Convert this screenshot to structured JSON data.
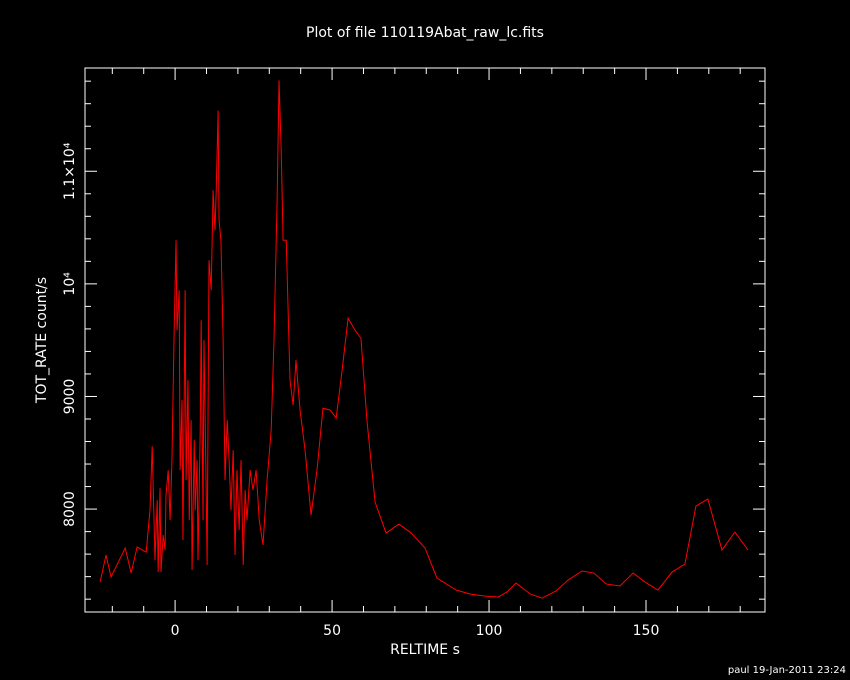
{
  "chart_data": {
    "type": "line",
    "title": "Plot of file 110119Abat_raw_lc.fits",
    "xlabel": "RELTIME  s",
    "ylabel": "TOT_RATE  count/s",
    "footer": "paul 19-Jan-2011 23:24",
    "color": "#ff0000",
    "xlim": [
      -28.7,
      187.9
    ],
    "ylim": [
      7086,
      11917
    ],
    "xticks": [
      0,
      50,
      100,
      150
    ],
    "yticks": [
      8000,
      9000,
      {
        "value": 10000,
        "label": "10⁴"
      },
      {
        "value": 11000,
        "label": "1.1×10⁴"
      }
    ],
    "xminor": [
      -20,
      -10,
      10,
      20,
      30,
      40,
      60,
      70,
      80,
      90,
      110,
      120,
      130,
      140,
      160,
      170,
      180
    ],
    "yminor": [
      7200,
      7400,
      7600,
      7800,
      8200,
      8400,
      8600,
      8800,
      9200,
      9400,
      9600,
      9800,
      10200,
      10400,
      10600,
      10800,
      11200,
      11400,
      11600,
      11800
    ],
    "x": [
      -23.9,
      -22,
      -20.4,
      -15.9,
      -14,
      -12.1,
      -9.2,
      -8,
      -7.3,
      -6.4,
      -5.7,
      -5.4,
      -4.8,
      -4.5,
      -3.8,
      -3.2,
      -2.9,
      -2.2,
      -1.6,
      -1,
      -0.3,
      0.3,
      0.6,
      1.3,
      1.6,
      2.2,
      2.5,
      3.2,
      3.5,
      4.1,
      4.5,
      5.1,
      5.4,
      6.1,
      6.4,
      7,
      7.3,
      8,
      8.3,
      8.9,
      9.2,
      9.9,
      10.2,
      10.8,
      11.5,
      12.1,
      12.7,
      13.1,
      13.7,
      14,
      14.6,
      15.3,
      15.9,
      16.6,
      17.2,
      17.8,
      18.5,
      19.1,
      19.7,
      20.4,
      21,
      21.7,
      22.3,
      22.9,
      23.9,
      24.8,
      25.8,
      26.8,
      28,
      29.3,
      30.6,
      31.5,
      32.5,
      33.1,
      33.8,
      34.4,
      35.4,
      36.6,
      37.6,
      38.5,
      39.8,
      41.4,
      43.3,
      45.2,
      47.1,
      49.4,
      51.3,
      53.2,
      55.1,
      57.3,
      59.2,
      61.1,
      63.7,
      67.2,
      71.3,
      75.2,
      79.6,
      83.4,
      89.5,
      93.9,
      98.4,
      102.9,
      105.7,
      108.6,
      113.1,
      116.9,
      121.3,
      125.2,
      129.6,
      133.4,
      137.3,
      141.7,
      145.9,
      149.7,
      153.8,
      158.3,
      162.4,
      165.9,
      169.7,
      174.2,
      178.3,
      182.5
    ],
    "values": [
      7352,
      7592,
      7397,
      7654,
      7432,
      7663,
      7618,
      7991,
      8559,
      7547,
      8080,
      7441,
      8186,
      7441,
      7769,
      7636,
      8124,
      8346,
      7902,
      8435,
      9588,
      10387,
      9588,
      9943,
      8346,
      8967,
      7725,
      9943,
      8257,
      9145,
      7902,
      8790,
      7459,
      8612,
      7991,
      8435,
      7547,
      8701,
      9677,
      7902,
      9500,
      8169,
      7503,
      10209,
      9943,
      10831,
      10476,
      10831,
      11540,
      10565,
      10387,
      9500,
      8257,
      8790,
      8435,
      7991,
      8523,
      7592,
      8346,
      7814,
      8435,
      7503,
      8169,
      7902,
      8346,
      8169,
      8346,
      7902,
      7681,
      8257,
      8701,
      9500,
      10742,
      11807,
      11185,
      10387,
      10387,
      9145,
      8923,
      9322,
      8879,
      8523,
      7947,
      8346,
      8896,
      8879,
      8808,
      9234,
      9695,
      9588,
      9517,
      8790,
      8062,
      7787,
      7867,
      7787,
      7654,
      7388,
      7281,
      7246,
      7228,
      7219,
      7264,
      7343,
      7246,
      7210,
      7272,
      7370,
      7450,
      7432,
      7335,
      7317,
      7432,
      7352,
      7281,
      7441,
      7512,
      8027,
      8089,
      7636,
      7796,
      7636
    ]
  }
}
